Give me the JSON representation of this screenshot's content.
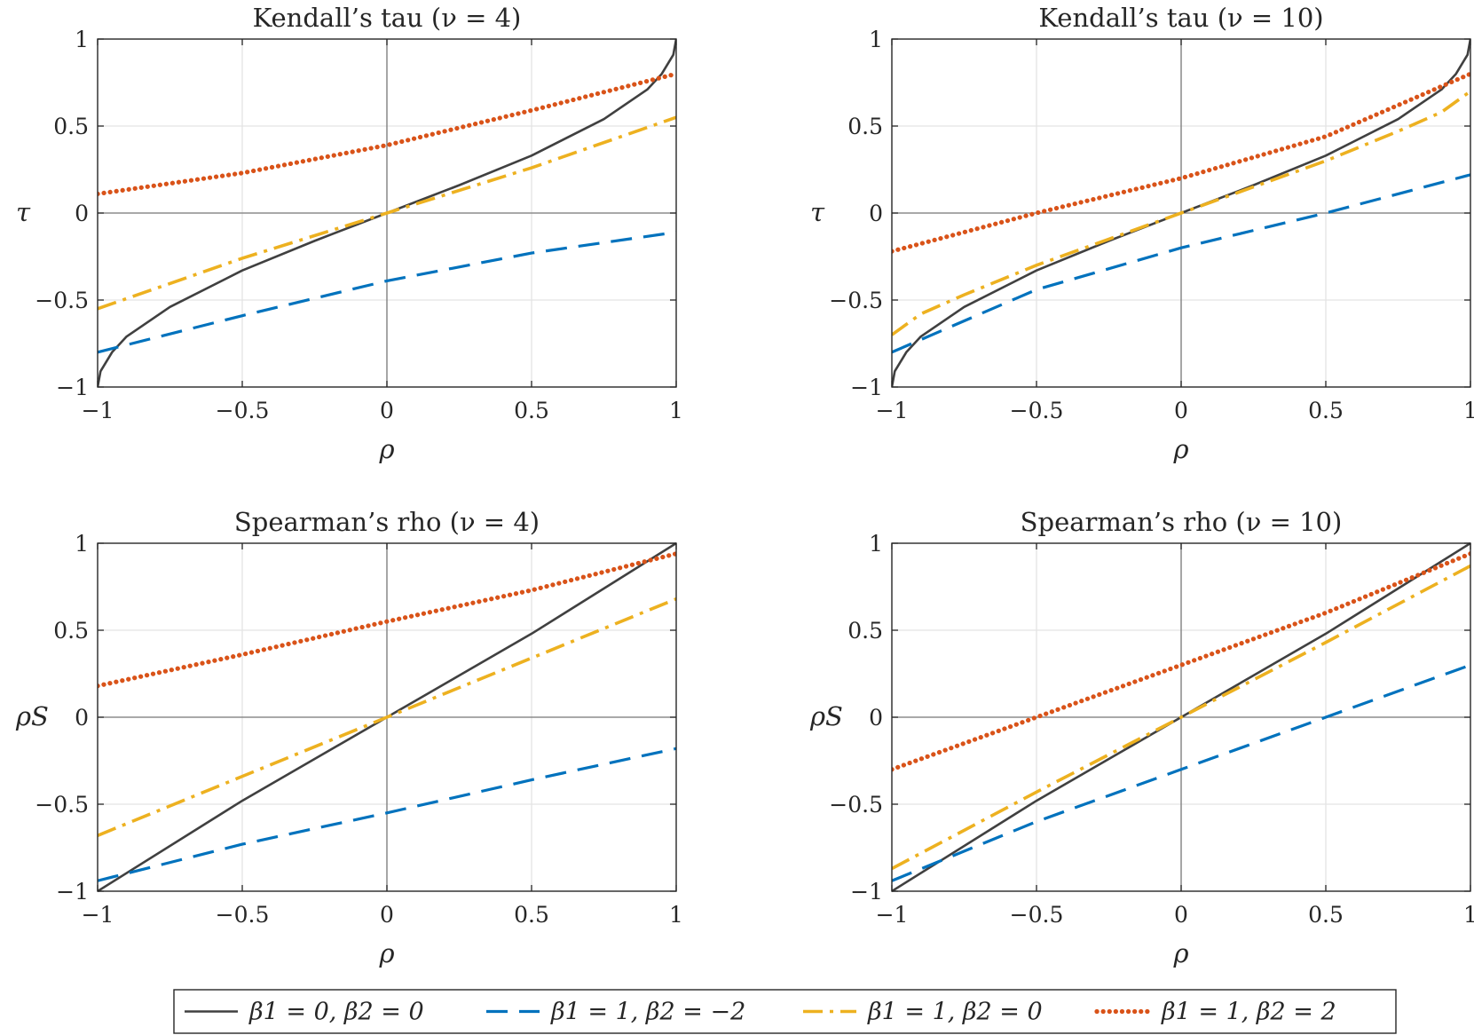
{
  "chart_data": [
    {
      "type": "line",
      "title": "Kendall’s tau (ν = 4)",
      "xlabel": "ρ",
      "ylabel": "τ",
      "xlim": [
        -1,
        1
      ],
      "ylim": [
        -1,
        1
      ],
      "grid": true,
      "xticks": [
        -1,
        -0.5,
        0,
        0.5,
        1
      ],
      "yticks": [
        -1,
        -0.5,
        0,
        0.5,
        1
      ],
      "xtick_labels": [
        "−1",
        "−0.5",
        "0",
        "0.5",
        "1"
      ],
      "ytick_labels": [
        "−1",
        "−0.5",
        "0",
        "0.5",
        "1"
      ],
      "series": [
        {
          "name": "β1 = 0, β2 = 0",
          "x": [
            -1,
            -0.99,
            -0.95,
            -0.9,
            -0.75,
            -0.5,
            -0.25,
            0,
            0.25,
            0.5,
            0.75,
            0.9,
            0.95,
            0.99,
            1
          ],
          "values": [
            -1,
            -0.91,
            -0.8,
            -0.71,
            -0.54,
            -0.33,
            -0.16,
            0,
            0.16,
            0.33,
            0.54,
            0.71,
            0.8,
            0.91,
            1
          ]
        },
        {
          "name": "β1 = 1, β2 = −2",
          "x": [
            -1,
            -0.5,
            0,
            0.5,
            1
          ],
          "values": [
            -0.8,
            -0.59,
            -0.39,
            -0.23,
            -0.11
          ]
        },
        {
          "name": "β1 = 1, β2 = 0",
          "x": [
            -1,
            -0.5,
            0,
            0.5,
            1
          ],
          "values": [
            -0.55,
            -0.26,
            0,
            0.26,
            0.55
          ]
        },
        {
          "name": "β1 = 1, β2 = 2",
          "x": [
            -1,
            -0.5,
            0,
            0.5,
            1
          ],
          "values": [
            0.11,
            0.23,
            0.39,
            0.59,
            0.8
          ]
        }
      ]
    },
    {
      "type": "line",
      "title": "Kendall’s tau (ν = 10)",
      "xlabel": "ρ",
      "ylabel": "τ",
      "xlim": [
        -1,
        1
      ],
      "ylim": [
        -1,
        1
      ],
      "grid": true,
      "xticks": [
        -1,
        -0.5,
        0,
        0.5,
        1
      ],
      "yticks": [
        -1,
        -0.5,
        0,
        0.5,
        1
      ],
      "xtick_labels": [
        "−1",
        "−0.5",
        "0",
        "0.5",
        "1"
      ],
      "ytick_labels": [
        "−1",
        "−0.5",
        "0",
        "0.5",
        "1"
      ],
      "series": [
        {
          "name": "β1 = 0, β2 = 0",
          "x": [
            -1,
            -0.99,
            -0.95,
            -0.9,
            -0.75,
            -0.5,
            -0.25,
            0,
            0.25,
            0.5,
            0.75,
            0.9,
            0.95,
            0.99,
            1
          ],
          "values": [
            -1,
            -0.91,
            -0.8,
            -0.71,
            -0.54,
            -0.33,
            -0.16,
            0,
            0.16,
            0.33,
            0.54,
            0.71,
            0.8,
            0.91,
            1
          ]
        },
        {
          "name": "β1 = 1, β2 = −2",
          "x": [
            -1,
            -0.5,
            0,
            0.5,
            1
          ],
          "values": [
            -0.8,
            -0.44,
            -0.2,
            0,
            0.22
          ]
        },
        {
          "name": "β1 = 1, β2 = 0",
          "x": [
            -1,
            -0.9,
            -0.75,
            -0.5,
            -0.25,
            0,
            0.25,
            0.5,
            0.75,
            0.9,
            1
          ],
          "values": [
            -0.7,
            -0.58,
            -0.47,
            -0.3,
            -0.15,
            0,
            0.15,
            0.3,
            0.47,
            0.58,
            0.7
          ]
        },
        {
          "name": "β1 = 1, β2 = 2",
          "x": [
            -1,
            -0.5,
            0,
            0.5,
            1
          ],
          "values": [
            -0.22,
            0,
            0.2,
            0.44,
            0.8
          ]
        }
      ]
    },
    {
      "type": "line",
      "title": "Spearman’s rho (ν = 4)",
      "xlabel": "ρ",
      "ylabel": "ρS",
      "xlim": [
        -1,
        1
      ],
      "ylim": [
        -1,
        1
      ],
      "grid": true,
      "xticks": [
        -1,
        -0.5,
        0,
        0.5,
        1
      ],
      "yticks": [
        -1,
        -0.5,
        0,
        0.5,
        1
      ],
      "xtick_labels": [
        "−1",
        "−0.5",
        "0",
        "0.5",
        "1"
      ],
      "ytick_labels": [
        "−1",
        "−0.5",
        "0",
        "0.5",
        "1"
      ],
      "series": [
        {
          "name": "β1 = 0, β2 = 0",
          "x": [
            -1,
            -0.5,
            0,
            0.5,
            1
          ],
          "values": [
            -1,
            -0.48,
            0,
            0.48,
            1
          ]
        },
        {
          "name": "β1 = 1, β2 = −2",
          "x": [
            -1,
            -0.5,
            0,
            0.5,
            1
          ],
          "values": [
            -0.94,
            -0.73,
            -0.55,
            -0.36,
            -0.18
          ]
        },
        {
          "name": "β1 = 1, β2 = 0",
          "x": [
            -1,
            -0.5,
            0,
            0.5,
            1
          ],
          "values": [
            -0.68,
            -0.34,
            0,
            0.34,
            0.68
          ]
        },
        {
          "name": "β1 = 1, β2 = 2",
          "x": [
            -1,
            -0.5,
            0,
            0.5,
            1
          ],
          "values": [
            0.18,
            0.36,
            0.55,
            0.73,
            0.94
          ]
        }
      ]
    },
    {
      "type": "line",
      "title": "Spearman’s rho (ν = 10)",
      "xlabel": "ρ",
      "ylabel": "ρS",
      "xlim": [
        -1,
        1
      ],
      "ylim": [
        -1,
        1
      ],
      "grid": true,
      "xticks": [
        -1,
        -0.5,
        0,
        0.5,
        1
      ],
      "yticks": [
        -1,
        -0.5,
        0,
        0.5,
        1
      ],
      "xtick_labels": [
        "−1",
        "−0.5",
        "0",
        "0.5",
        "1"
      ],
      "ytick_labels": [
        "−1",
        "−0.5",
        "0",
        "0.5",
        "1"
      ],
      "series": [
        {
          "name": "β1 = 0, β2 = 0",
          "x": [
            -1,
            -0.5,
            0,
            0.5,
            1
          ],
          "values": [
            -1,
            -0.48,
            0,
            0.48,
            1
          ]
        },
        {
          "name": "β1 = 1, β2 = −2",
          "x": [
            -1,
            -0.5,
            0,
            0.5,
            1
          ],
          "values": [
            -0.94,
            -0.6,
            -0.3,
            0,
            0.3
          ]
        },
        {
          "name": "β1 = 1, β2 = 0",
          "x": [
            -1,
            -0.5,
            0,
            0.5,
            1
          ],
          "values": [
            -0.87,
            -0.43,
            0,
            0.43,
            0.87
          ]
        },
        {
          "name": "β1 = 1, β2 = 2",
          "x": [
            -1,
            -0.5,
            0,
            0.5,
            1
          ],
          "values": [
            -0.3,
            0,
            0.3,
            0.6,
            0.94
          ]
        }
      ]
    }
  ],
  "legend": {
    "position": "bottom-center",
    "entries": [
      {
        "label": "β1 = 0,  β2 = 0",
        "color": "#404040",
        "style": "solid"
      },
      {
        "label": "β1 = 1,  β2 = −2",
        "color": "#0072BD",
        "style": "dashed"
      },
      {
        "label": "β1 = 1,  β2 = 0",
        "color": "#EDB120",
        "style": "dashdot"
      },
      {
        "label": "β1 = 1,  β2 = 2",
        "color": "#D95319",
        "style": "dotted"
      }
    ]
  },
  "series_colors": [
    "#404040",
    "#0072BD",
    "#EDB120",
    "#D95319"
  ]
}
